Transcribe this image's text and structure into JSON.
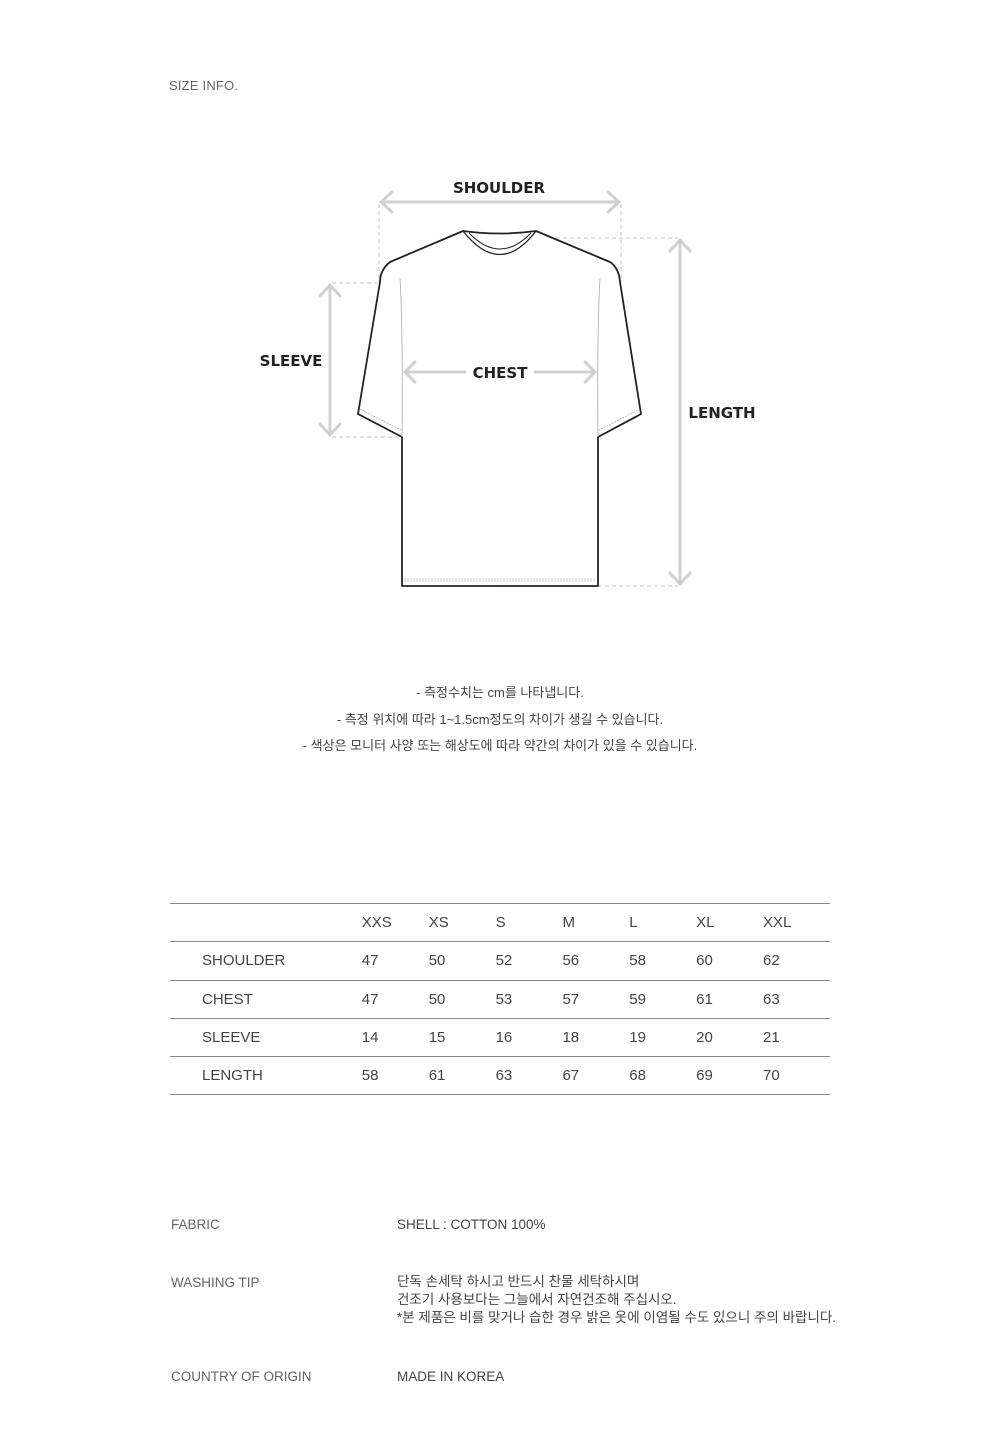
{
  "title": "SIZE INFO.",
  "diagram": {
    "labels": {
      "shoulder": "SHOULDER",
      "sleeve": "SLEEVE",
      "chest": "CHEST",
      "length": "LENGTH"
    },
    "colors": {
      "outline": "#222222",
      "arrow": "#d0d0d0"
    }
  },
  "notes": [
    "- 측정수치는 cm를 나타냅니다.",
    "- 측정 위치에 따라 1~1.5cm정도의 차이가 생길 수 있습니다.",
    "- 색상은 모니터 사양 또는 해상도에 따라 약간의 차이가 있을 수 있습니다."
  ],
  "size_table": {
    "headers": [
      "",
      "XXS",
      "XS",
      "S",
      "M",
      "L",
      "XL",
      "XXL"
    ],
    "rows": [
      {
        "label": "SHOULDER",
        "values": [
          "47",
          "50",
          "52",
          "56",
          "58",
          "60",
          "62"
        ]
      },
      {
        "label": "CHEST",
        "values": [
          "47",
          "50",
          "53",
          "57",
          "59",
          "61",
          "63"
        ]
      },
      {
        "label": "SLEEVE",
        "values": [
          "14",
          "15",
          "16",
          "18",
          "19",
          "20",
          "21"
        ]
      },
      {
        "label": "LENGTH",
        "values": [
          "58",
          "61",
          "63",
          "67",
          "68",
          "69",
          "70"
        ]
      }
    ]
  },
  "info": {
    "fabric": {
      "label": "FABRIC",
      "value": "SHELL : COTTON 100%"
    },
    "washing": {
      "label": "WASHING TIP",
      "lines": [
        "단독 손세탁 하시고 반드시 찬물 세탁하시며",
        "건조기 사용보다는 그늘에서 자연건조해 주십시오.",
        "*본 제품은 비를 맞거나 습한 경우 밝은 옷에 이염될 수도 있으니 주의 바랍니다."
      ]
    },
    "origin": {
      "label": "COUNTRY OF ORIGIN",
      "value": "MADE IN KOREA"
    }
  }
}
